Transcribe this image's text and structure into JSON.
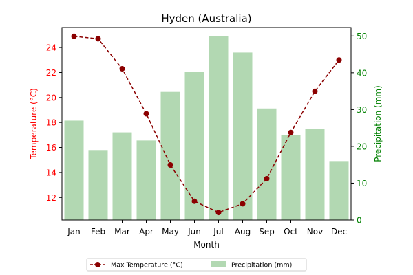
{
  "chart_data": {
    "type": "bar+line",
    "title": "Hyden (Australia)",
    "xlabel": "Month",
    "categories": [
      "Jan",
      "Feb",
      "Mar",
      "Apr",
      "May",
      "Jun",
      "Jul",
      "Aug",
      "Sep",
      "Oct",
      "Nov",
      "Dec"
    ],
    "left_axis": {
      "label": "Temperature (°C)",
      "color": "#ff0000",
      "ylim": [
        10.2,
        25.6
      ],
      "ticks": [
        12,
        14,
        16,
        18,
        20,
        22,
        24
      ]
    },
    "right_axis": {
      "label": "Precipitation (mm)",
      "color": "#008000",
      "ylim": [
        0,
        52.3
      ],
      "ticks": [
        0,
        10,
        20,
        30,
        40,
        50
      ]
    },
    "series": [
      {
        "name": "Max Temperature (°C)",
        "kind": "line",
        "axis": "left",
        "color": "#8b0000",
        "style": "dashed-with-circle-markers",
        "values": [
          24.9,
          24.7,
          22.3,
          18.7,
          14.6,
          11.7,
          10.8,
          11.5,
          13.5,
          17.2,
          20.5,
          23.0
        ]
      },
      {
        "name": "Precipitation (mm)",
        "kind": "bar",
        "axis": "right",
        "color": "#b2d8b2",
        "values": [
          27.0,
          19.0,
          23.8,
          21.6,
          34.8,
          40.2,
          50.0,
          45.5,
          30.3,
          23.0,
          24.8,
          16.0
        ]
      }
    ],
    "legend": {
      "placement": "bottom-center",
      "columns": 2
    },
    "grid": false
  }
}
